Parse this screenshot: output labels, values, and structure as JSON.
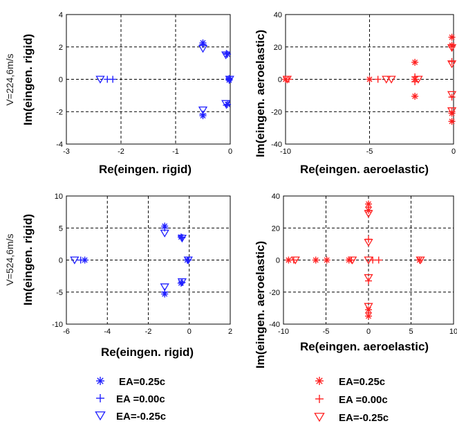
{
  "colors": {
    "blue": "#1f1fff",
    "red": "#ff2020"
  },
  "legend_blue": [
    {
      "label": "EA=0.25c",
      "marker": "star"
    },
    {
      "label": "EA =0.00c",
      "marker": "plus"
    },
    {
      "label": "EA=-0.25c",
      "marker": "triangle"
    }
  ],
  "legend_red": [
    {
      "label": "EA=0.25c",
      "marker": "star"
    },
    {
      "label": "EA =0.00c",
      "marker": "plus"
    },
    {
      "label": "EA=-0.25c",
      "marker": "triangle"
    }
  ],
  "chart_data": [
    {
      "type": "scatter",
      "color": "blue",
      "side_label": "V=224,6m/s",
      "xlabel": "Re(eingen. rigid)",
      "ylabel": "Im(eingen. rigid)",
      "xlim": [
        -3,
        0
      ],
      "ylim": [
        -4,
        4
      ],
      "xticks": [
        -3,
        -2,
        -1,
        0
      ],
      "yticks": [
        -4,
        -2,
        0,
        2,
        4
      ],
      "grid": true,
      "series": [
        {
          "marker": "star",
          "points": [
            [
              -0.5,
              2.25
            ],
            [
              -0.5,
              -2.25
            ],
            [
              -0.05,
              1.55
            ],
            [
              -0.05,
              -1.55
            ],
            [
              -0.02,
              0.05
            ],
            [
              -0.02,
              -0.05
            ]
          ]
        },
        {
          "marker": "plus",
          "points": [
            [
              -0.5,
              2.15
            ],
            [
              -0.5,
              -2.15
            ],
            [
              -0.07,
              1.6
            ],
            [
              -0.07,
              -1.6
            ],
            [
              -2.15,
              0
            ],
            [
              -2.25,
              0
            ],
            [
              -0.02,
              0
            ]
          ]
        },
        {
          "marker": "triangle",
          "points": [
            [
              -0.5,
              1.9
            ],
            [
              -0.5,
              -1.9
            ],
            [
              -0.08,
              1.5
            ],
            [
              -0.08,
              -1.5
            ],
            [
              -2.38,
              0
            ],
            [
              -0.01,
              0
            ]
          ]
        }
      ]
    },
    {
      "type": "scatter",
      "color": "red",
      "side_label": "",
      "xlabel": "Re(eingen. aeroelastic)",
      "ylabel": "Im(eingen. aeroelastic)",
      "xlim": [
        -10,
        0
      ],
      "ylim": [
        -40,
        40
      ],
      "xticks": [
        -10,
        -5,
        0
      ],
      "yticks": [
        -40,
        -20,
        0,
        20,
        40
      ],
      "grid": true,
      "series": [
        {
          "marker": "star",
          "points": [
            [
              -2.3,
              10.5
            ],
            [
              -2.3,
              -10.5
            ],
            [
              -2.3,
              0
            ],
            [
              -0.1,
              26
            ],
            [
              -0.1,
              -26
            ],
            [
              -0.1,
              21
            ],
            [
              -0.1,
              -21
            ],
            [
              -5.0,
              0
            ],
            [
              -10,
              0
            ]
          ]
        },
        {
          "marker": "plus",
          "points": [
            [
              -0.1,
              20
            ],
            [
              -0.1,
              -20
            ],
            [
              -2.3,
              1.5
            ],
            [
              -2.3,
              -1.5
            ],
            [
              -4.5,
              0
            ],
            [
              -0.1,
              11
            ],
            [
              -0.1,
              -11
            ],
            [
              -9.8,
              0
            ]
          ]
        },
        {
          "marker": "triangle",
          "points": [
            [
              -0.1,
              19.5
            ],
            [
              -0.1,
              -19.5
            ],
            [
              -0.1,
              9.5
            ],
            [
              -0.1,
              -9.5
            ],
            [
              -2.1,
              0
            ],
            [
              -4.0,
              0
            ],
            [
              -3.7,
              0
            ],
            [
              -9.9,
              0
            ]
          ]
        }
      ]
    },
    {
      "type": "scatter",
      "color": "blue",
      "side_label": "V=524,6m/s",
      "xlabel": "Re(eingen. rigid)",
      "ylabel": "Im(eingen. rigid)",
      "xlim": [
        -6,
        2
      ],
      "ylim": [
        -10,
        10
      ],
      "xticks": [
        -6,
        -4,
        -2,
        0,
        2
      ],
      "yticks": [
        -10,
        -5,
        0,
        5,
        10
      ],
      "grid": true,
      "series": [
        {
          "marker": "star",
          "points": [
            [
              -1.2,
              5.3
            ],
            [
              -1.2,
              -5.3
            ],
            [
              -0.4,
              3.6
            ],
            [
              -0.4,
              -3.6
            ],
            [
              -5.1,
              0
            ],
            [
              -0.1,
              0
            ]
          ]
        },
        {
          "marker": "plus",
          "points": [
            [
              -1.2,
              5.0
            ],
            [
              -1.2,
              -5.0
            ],
            [
              -0.35,
              3.5
            ],
            [
              -0.35,
              -3.5
            ],
            [
              -5.3,
              0
            ],
            [
              -0.05,
              0
            ]
          ]
        },
        {
          "marker": "triangle",
          "points": [
            [
              -1.2,
              4.2
            ],
            [
              -1.2,
              -4.2
            ],
            [
              -0.35,
              3.4
            ],
            [
              -0.35,
              -3.4
            ],
            [
              -5.6,
              0
            ],
            [
              -0.05,
              0
            ]
          ]
        }
      ]
    },
    {
      "type": "scatter",
      "color": "red",
      "side_label": "",
      "xlabel": "Re(eingen. aeroelastic)",
      "ylabel": "Im(eingen. aeroelastic)",
      "xlim": [
        -10,
        10
      ],
      "ylim": [
        -40,
        40
      ],
      "xticks": [
        -10,
        -5,
        0,
        5,
        10
      ],
      "yticks": [
        -40,
        -20,
        0,
        20,
        40
      ],
      "grid": true,
      "series": [
        {
          "marker": "star",
          "points": [
            [
              0,
              35
            ],
            [
              0,
              -35
            ],
            [
              0,
              31
            ],
            [
              0,
              -31
            ],
            [
              -6.2,
              0
            ],
            [
              -4.9,
              0
            ],
            [
              -2.3,
              0
            ],
            [
              -9.4,
              0
            ],
            [
              6.0,
              0
            ]
          ]
        },
        {
          "marker": "plus",
          "points": [
            [
              0,
              33
            ],
            [
              0,
              -33
            ],
            [
              0,
              13
            ],
            [
              0,
              -13
            ],
            [
              0.5,
              0
            ],
            [
              1.2,
              0
            ],
            [
              -2.0,
              0
            ],
            [
              -8.8,
              0
            ]
          ]
        },
        {
          "marker": "triangle",
          "points": [
            [
              0,
              29
            ],
            [
              0,
              -29
            ],
            [
              0,
              11
            ],
            [
              0,
              -11
            ],
            [
              -1.9,
              0
            ],
            [
              -8.6,
              0
            ],
            [
              6.1,
              0
            ],
            [
              0,
              0
            ]
          ]
        }
      ]
    }
  ]
}
